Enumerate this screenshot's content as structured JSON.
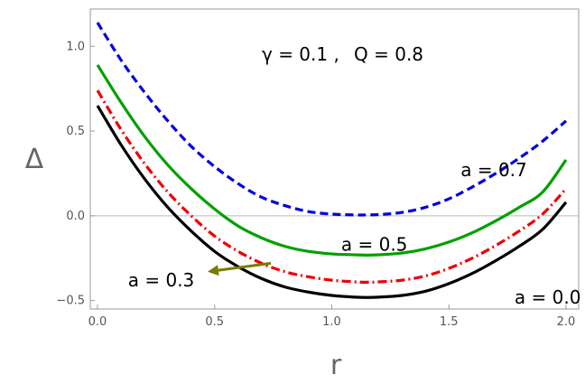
{
  "chart_data": {
    "type": "line",
    "title": "",
    "xlabel": "r",
    "ylabel": "Δ",
    "xlim": [
      0.0,
      2.0
    ],
    "ylim": [
      -0.55,
      1.22
    ],
    "zero_line": true,
    "grid": false,
    "parameters_text": [
      "γ = 0.1 ,",
      "Q = 0.8"
    ],
    "xticks": [
      {
        "value": 0.0,
        "label": "0.0"
      },
      {
        "value": 0.5,
        "label": "0.5"
      },
      {
        "value": 1.0,
        "label": "1.0"
      },
      {
        "value": 1.5,
        "label": "1.5"
      },
      {
        "value": 2.0,
        "label": "2.0"
      }
    ],
    "yticks": [
      {
        "value": -0.5,
        "label": "−0.5"
      },
      {
        "value": 0.0,
        "label": "0.0"
      },
      {
        "value": 0.5,
        "label": "0.5"
      },
      {
        "value": 1.0,
        "label": "1.0"
      }
    ],
    "x": [
      0.0,
      0.1,
      0.2,
      0.3,
      0.4,
      0.5,
      0.6,
      0.7,
      0.8,
      0.9,
      1.0,
      1.1,
      1.15,
      1.2,
      1.3,
      1.4,
      1.5,
      1.6,
      1.7,
      1.8,
      1.9,
      2.0
    ],
    "series": [
      {
        "color": "#0000dd",
        "dash": "dashed",
        "values": [
          1.14,
          0.92,
          0.73,
          0.56,
          0.41,
          0.29,
          0.19,
          0.11,
          0.06,
          0.025,
          0.01,
          0.005,
          0.005,
          0.007,
          0.02,
          0.05,
          0.1,
          0.17,
          0.25,
          0.34,
          0.44,
          0.56
        ]
      },
      {
        "color": "#00a000",
        "dash": "solid",
        "values": [
          0.89,
          0.67,
          0.47,
          0.3,
          0.16,
          0.04,
          -0.06,
          -0.13,
          -0.18,
          -0.21,
          -0.225,
          -0.23,
          -0.232,
          -0.23,
          -0.22,
          -0.195,
          -0.155,
          -0.1,
          -0.03,
          0.05,
          0.14,
          0.33
        ]
      },
      {
        "color": "#ee0000",
        "dash": "dashdot",
        "values": [
          0.74,
          0.51,
          0.31,
          0.14,
          0.0,
          -0.12,
          -0.21,
          -0.28,
          -0.33,
          -0.36,
          -0.38,
          -0.39,
          -0.392,
          -0.39,
          -0.38,
          -0.355,
          -0.31,
          -0.25,
          -0.175,
          -0.09,
          0.01,
          0.16
        ]
      },
      {
        "color": "#000000",
        "dash": "solid",
        "values": [
          0.65,
          0.42,
          0.22,
          0.05,
          -0.09,
          -0.21,
          -0.3,
          -0.37,
          -0.42,
          -0.45,
          -0.47,
          -0.48,
          -0.482,
          -0.48,
          -0.47,
          -0.445,
          -0.4,
          -0.34,
          -0.265,
          -0.18,
          -0.08,
          0.08
        ]
      }
    ],
    "annotations": [
      {
        "text": "a = 0.7",
        "x": 1.55,
        "y": 0.27
      },
      {
        "text": "a = 0.5",
        "x": 1.04,
        "y": -0.17
      },
      {
        "text": "a = 0.3",
        "x": 0.13,
        "y": -0.38
      },
      {
        "text": "a = 0.0",
        "x": 1.78,
        "y": -0.48
      }
    ],
    "arrow": {
      "color": "#7a7a00",
      "from_x": 0.74,
      "from_y": -0.28,
      "to_x": 0.47,
      "to_y": -0.33
    }
  }
}
